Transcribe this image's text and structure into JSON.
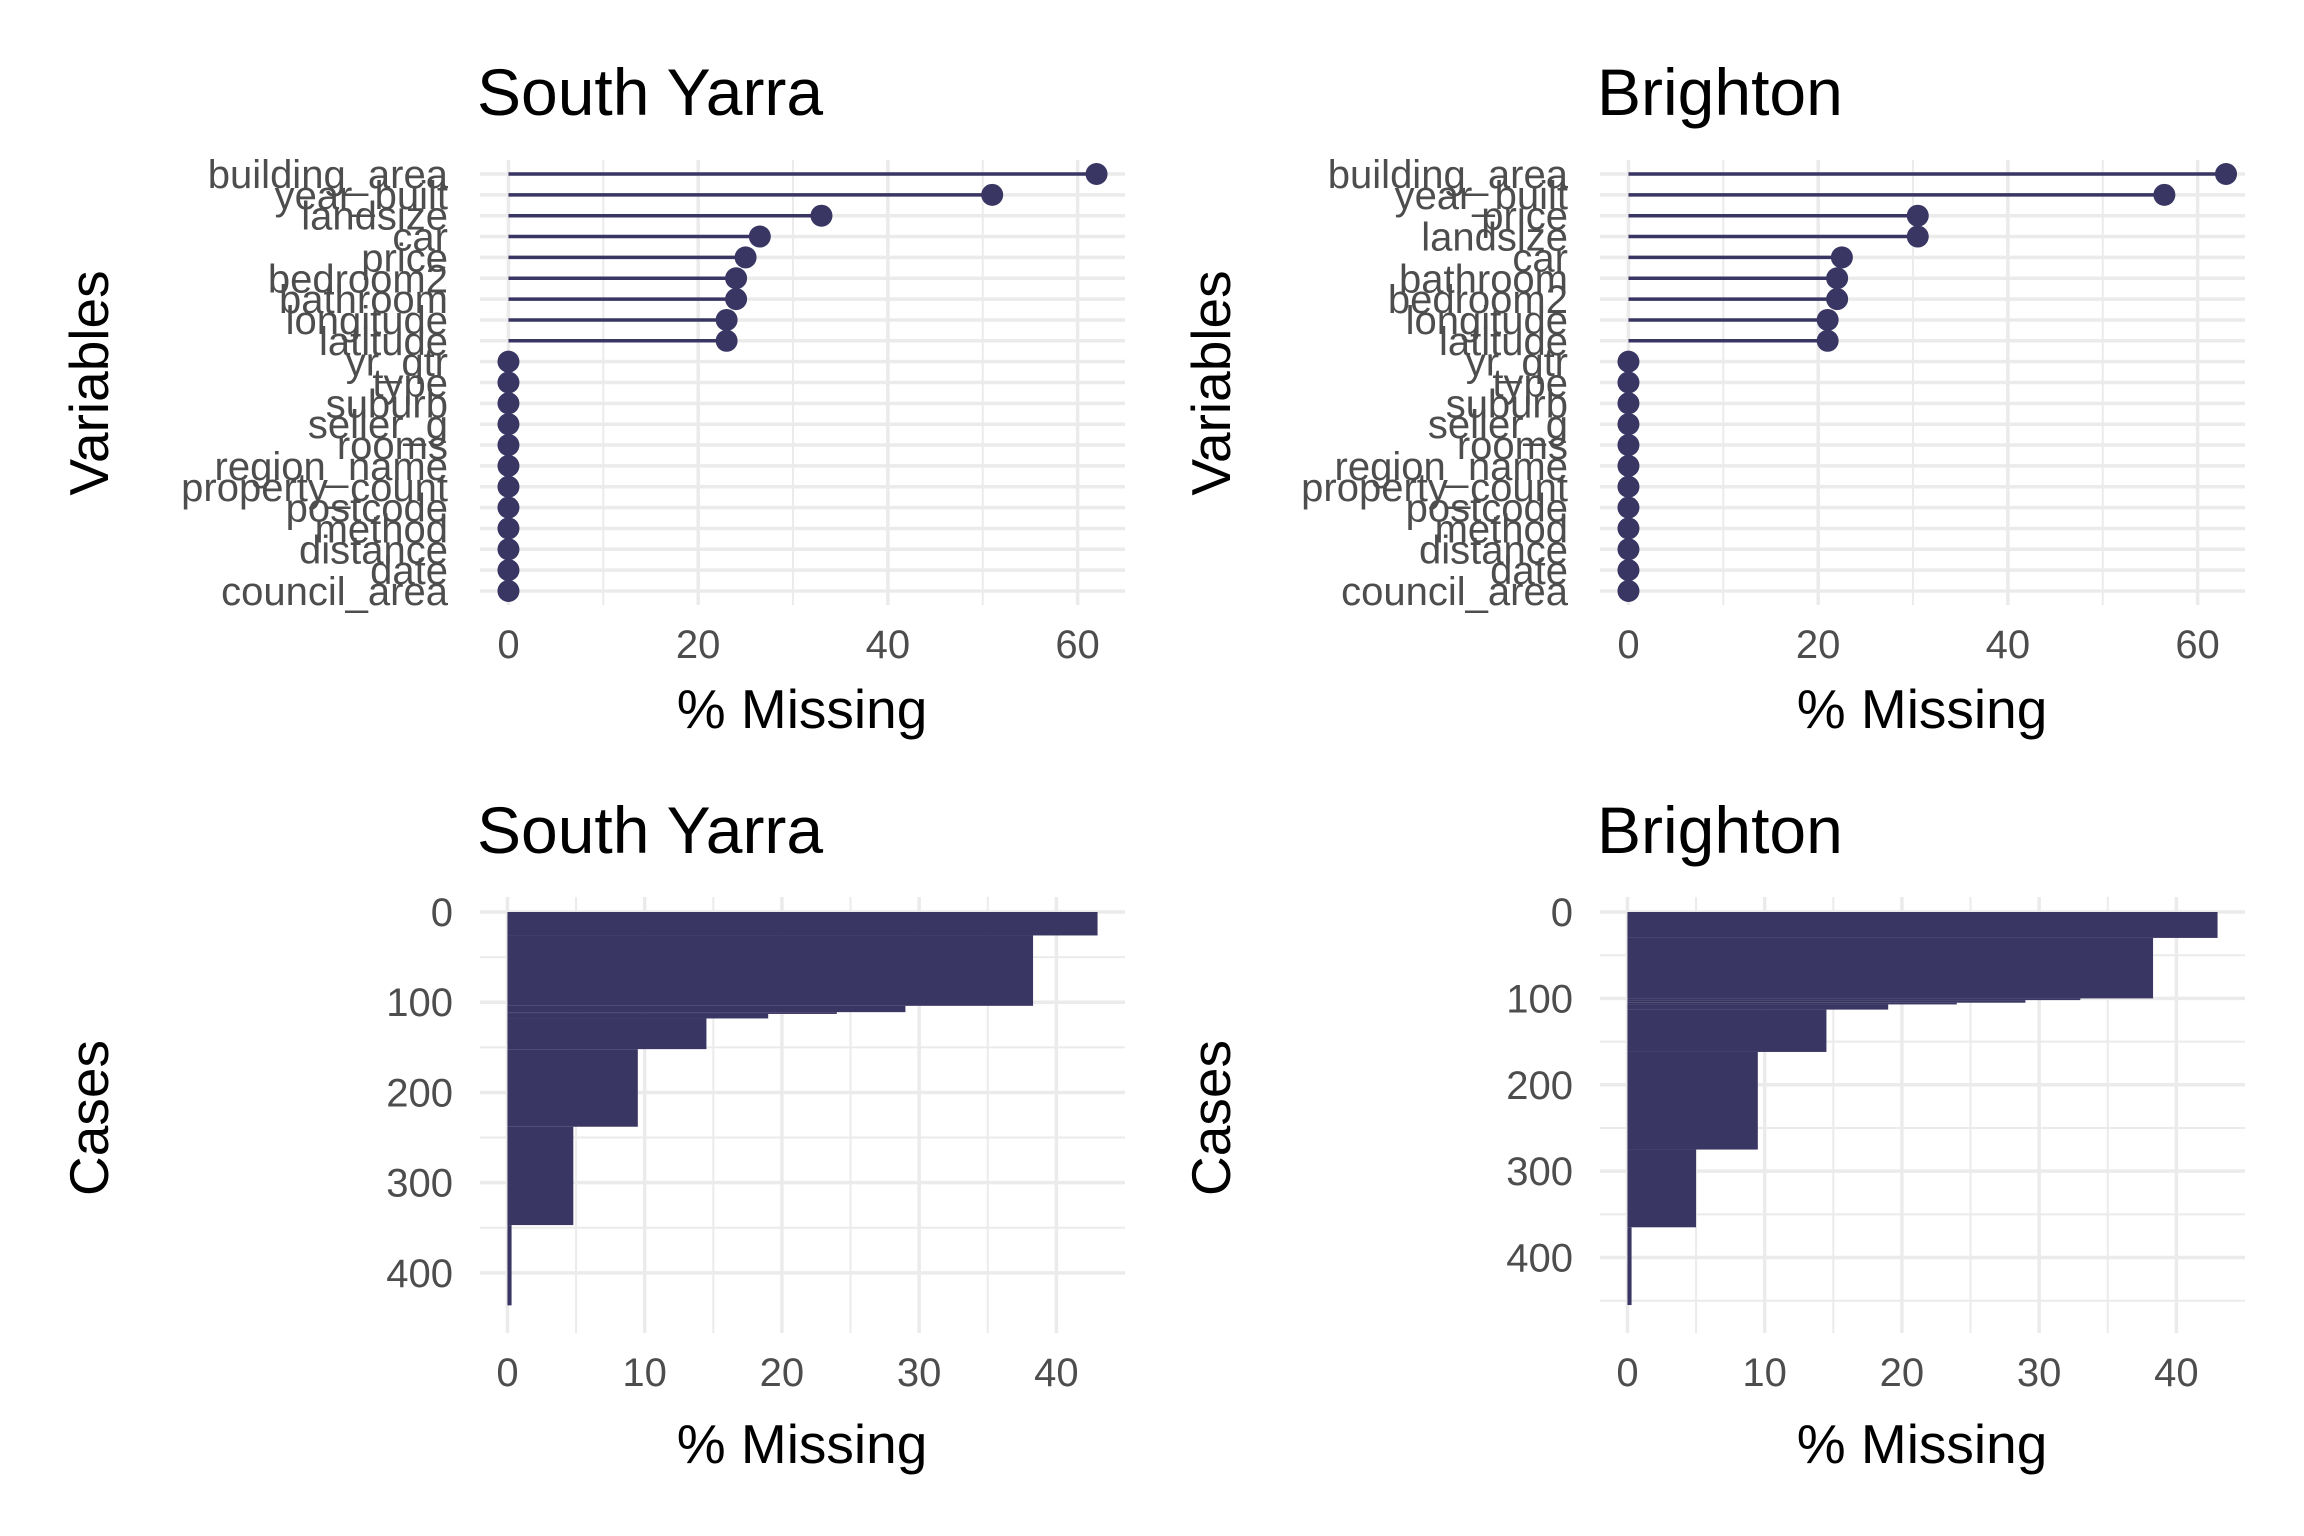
{
  "chart_data": [
    {
      "type": "lollipop",
      "title": "South Yarra",
      "xlabel": "% Missing",
      "ylabel": "Variables",
      "color": "#3a3663",
      "xlim": [
        -3,
        65
      ],
      "xticks": [
        0,
        20,
        40,
        60
      ],
      "categories": [
        "building_area",
        "year_built",
        "landsize",
        "car",
        "price",
        "bedroom2",
        "bathroom",
        "longitude",
        "latitude",
        "yr_qtr",
        "type",
        "suburb",
        "seller_g",
        "rooms",
        "region_name",
        "property_count",
        "postcode",
        "method",
        "distance",
        "date",
        "council_area"
      ],
      "values": [
        62,
        51,
        33,
        26.5,
        25,
        24,
        24,
        23,
        23,
        0,
        0,
        0,
        0,
        0,
        0,
        0,
        0,
        0,
        0,
        0,
        0
      ]
    },
    {
      "type": "lollipop",
      "title": "Brighton",
      "xlabel": "% Missing",
      "ylabel": "Variables",
      "color": "#3a3663",
      "xlim": [
        -3,
        65
      ],
      "xticks": [
        0,
        20,
        40,
        60
      ],
      "categories": [
        "building_area",
        "year_built",
        "price",
        "landsize",
        "car",
        "bathroom",
        "bedroom2",
        "longitude",
        "latitude",
        "yr_qtr",
        "type",
        "suburb",
        "seller_g",
        "rooms",
        "region_name",
        "property_count",
        "postcode",
        "method",
        "distance",
        "date",
        "council_area"
      ],
      "values": [
        63,
        56.5,
        30.5,
        30.5,
        22.5,
        22,
        22,
        21,
        21,
        0,
        0,
        0,
        0,
        0,
        0,
        0,
        0,
        0,
        0,
        0,
        0
      ]
    },
    {
      "type": "bar",
      "title": "South Yarra",
      "xlabel": "% Missing",
      "ylabel": "Cases",
      "color": "#3a3663",
      "xlim": [
        -2,
        45
      ],
      "ylim": [
        0,
        450
      ],
      "xticks": [
        0,
        10,
        20,
        30,
        40
      ],
      "yticks": [
        0,
        100,
        200,
        300,
        400
      ],
      "steps": [
        {
          "from": 0,
          "to": 26,
          "value": 43
        },
        {
          "from": 26,
          "to": 104,
          "value": 38.3
        },
        {
          "from": 104,
          "to": 111,
          "value": 29
        },
        {
          "from": 111,
          "to": 113,
          "value": 24
        },
        {
          "from": 113,
          "to": 118,
          "value": 19
        },
        {
          "from": 118,
          "to": 152,
          "value": 14.5
        },
        {
          "from": 152,
          "to": 238,
          "value": 9.5
        },
        {
          "from": 238,
          "to": 347,
          "value": 4.8
        },
        {
          "from": 347,
          "to": 436,
          "value": 0.3
        }
      ]
    },
    {
      "type": "bar",
      "title": "Brighton",
      "xlabel": "% Missing",
      "ylabel": "Cases",
      "color": "#3a3663",
      "xlim": [
        -2,
        45
      ],
      "ylim": [
        0,
        470
      ],
      "xticks": [
        0,
        10,
        20,
        30,
        40
      ],
      "yticks": [
        0,
        100,
        200,
        300,
        400
      ],
      "steps": [
        {
          "from": 0,
          "to": 30,
          "value": 43
        },
        {
          "from": 30,
          "to": 100,
          "value": 38.3
        },
        {
          "from": 100,
          "to": 102,
          "value": 33
        },
        {
          "from": 102,
          "to": 105,
          "value": 29
        },
        {
          "from": 105,
          "to": 107,
          "value": 24
        },
        {
          "from": 107,
          "to": 113,
          "value": 19
        },
        {
          "from": 113,
          "to": 162,
          "value": 14.5
        },
        {
          "from": 162,
          "to": 275,
          "value": 9.5
        },
        {
          "from": 275,
          "to": 365,
          "value": 5
        },
        {
          "from": 365,
          "to": 455,
          "value": 0.3
        }
      ]
    }
  ]
}
